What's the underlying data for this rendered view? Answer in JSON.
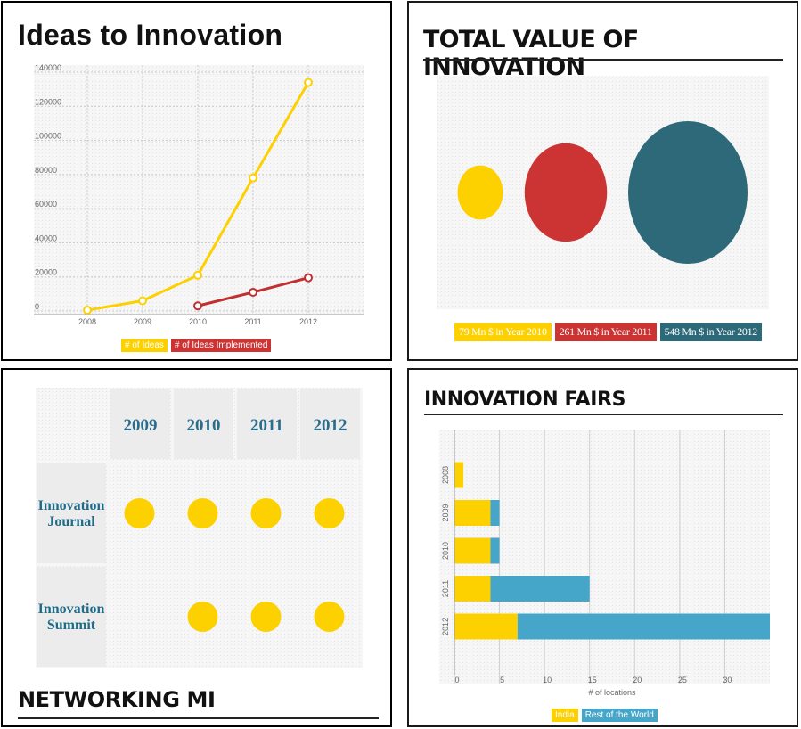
{
  "panels": {
    "ideas": {
      "title": "Ideas to Innovation",
      "legend": [
        "# of Ideas",
        "# of Ideas Implemented"
      ]
    },
    "value": {
      "title": "TOTAL VALUE OF INNOVATION",
      "legend": [
        "79 Mn $ in Year 2010",
        "261 Mn $ in Year 2011",
        "548 Mn $ in Year 2012"
      ]
    },
    "networking": {
      "title": "NETWORKING MI",
      "rows": [
        "Innovation Journal",
        "Innovation Summit"
      ]
    },
    "fairs": {
      "title": "INNOVATION FAIRS",
      "legend": [
        "India",
        "Rest of the World"
      ]
    }
  },
  "colors": {
    "yellow": "#fdd000",
    "red": "#cc3333",
    "teal": "#2d6978",
    "blue": "#45a6c9",
    "grid_bg": "#f4f4f4"
  },
  "chart_data": [
    {
      "type": "line",
      "title": "Ideas to Innovation",
      "x": [
        "2008",
        "2009",
        "2010",
        "2011",
        "2012"
      ],
      "y_ticks": [
        "0",
        "20000",
        "40000",
        "60000",
        "80000",
        "100000",
        "120000",
        "140000"
      ],
      "ylim": [
        0,
        140000
      ],
      "grid": true,
      "legend_position": "bottom",
      "series": [
        {
          "name": "# of Ideas",
          "color": "#fdd000",
          "values": [
            500,
            6000,
            21000,
            78000,
            134000
          ]
        },
        {
          "name": "# of Ideas Implemented",
          "color": "#c03030",
          "values": [
            null,
            null,
            3000,
            11000,
            19500
          ]
        }
      ]
    },
    {
      "type": "bubble",
      "title": "TOTAL VALUE OF INNOVATION",
      "categories": [
        "2010",
        "2011",
        "2012"
      ],
      "values": [
        79,
        261,
        548
      ],
      "labels": [
        "79 Mn $ in Year 2010",
        "261 Mn $ in Year 2011",
        "548 Mn $ in Year 2012"
      ],
      "colors": [
        "#fdd000",
        "#cc3333",
        "#2d6978"
      ],
      "legend_position": "bottom"
    },
    {
      "type": "table",
      "title": "NETWORKING MI",
      "columns": [
        "2009",
        "2010",
        "2011",
        "2012"
      ],
      "rows": [
        {
          "name": "Innovation Journal",
          "values": [
            true,
            true,
            true,
            true
          ]
        },
        {
          "name": "Innovation Summit",
          "values": [
            false,
            true,
            true,
            true
          ]
        }
      ]
    },
    {
      "type": "bar",
      "orientation": "horizontal",
      "stacked": true,
      "title": "INNOVATION FAIRS",
      "categories": [
        "2008",
        "2009",
        "2010",
        "2011",
        "2012"
      ],
      "xlabel": "# of locations",
      "x_ticks": [
        "0",
        "5",
        "10",
        "15",
        "20",
        "25",
        "30"
      ],
      "xlim": [
        0,
        35
      ],
      "grid": true,
      "legend_position": "bottom",
      "series": [
        {
          "name": "India",
          "color": "#fdd000",
          "values": [
            1,
            4,
            4,
            4,
            7
          ]
        },
        {
          "name": "Rest of the World",
          "color": "#45a6c9",
          "values": [
            0,
            1,
            1,
            11,
            28
          ]
        }
      ]
    }
  ]
}
